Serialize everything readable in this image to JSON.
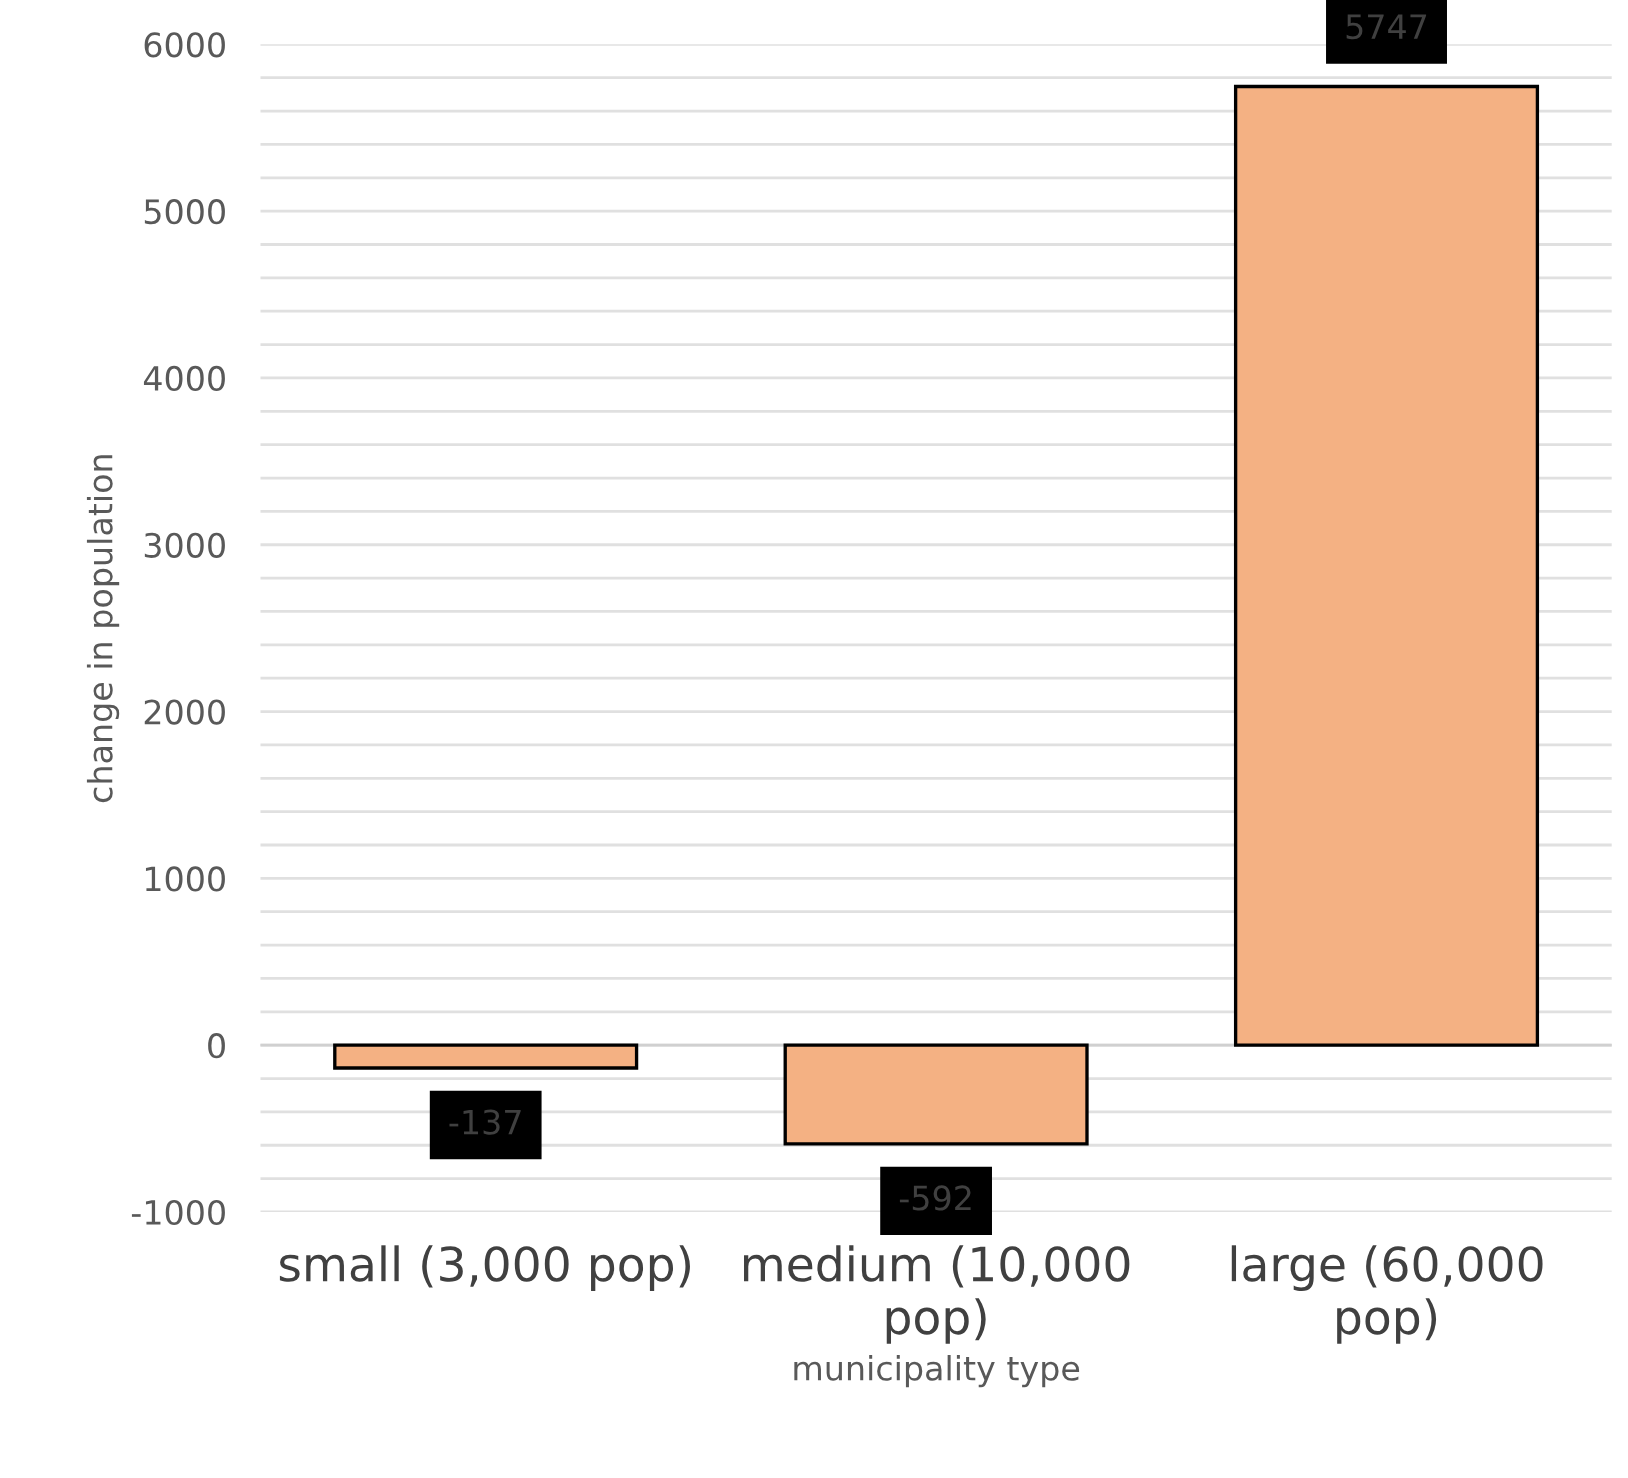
{
  "chart_data": {
    "type": "bar",
    "xlabel": "municipality type",
    "ylabel": "change in population",
    "categories": [
      "small (3,000 pop)",
      "medium (10,000\npop)",
      "large (60,000\npop)"
    ],
    "values": [
      -137,
      -592,
      5747
    ],
    "color": "#f4b183",
    "data_labels": true,
    "ylim": [
      -1000,
      6000
    ],
    "yticks": [
      -1000,
      {
        "value": -800,
        "label": null
      },
      {
        "value": -600,
        "label": null
      },
      {
        "value": -400,
        "label": null
      },
      {
        "value": -200,
        "label": null
      },
      0,
      {
        "value": 200,
        "label": null
      },
      {
        "value": 400,
        "label": null
      },
      {
        "value": 600,
        "label": null
      },
      {
        "value": 800,
        "label": null
      },
      1000,
      {
        "value": 1200,
        "label": null
      },
      {
        "value": 1400,
        "label": null
      },
      {
        "value": 1600,
        "label": null
      },
      {
        "value": 1800,
        "label": null
      },
      2000,
      {
        "value": 2200,
        "label": null
      },
      {
        "value": 2400,
        "label": null
      },
      {
        "value": 2600,
        "label": null
      },
      {
        "value": 2800,
        "label": null
      },
      3000,
      {
        "value": 3200,
        "label": null
      },
      {
        "value": 3400,
        "label": null
      },
      {
        "value": 3600,
        "label": null
      },
      {
        "value": 3800,
        "label": null
      },
      4000,
      {
        "value": 4200,
        "label": null
      },
      {
        "value": 4400,
        "label": null
      },
      {
        "value": 4600,
        "label": null
      },
      {
        "value": 4800,
        "label": null
      },
      5000,
      {
        "value": 5200,
        "label": null
      },
      {
        "value": 5400,
        "label": null
      },
      {
        "value": 5600,
        "label": null
      },
      {
        "value": 5800,
        "label": null
      },
      6000
    ],
    "grid": "y",
    "legend": false
  }
}
